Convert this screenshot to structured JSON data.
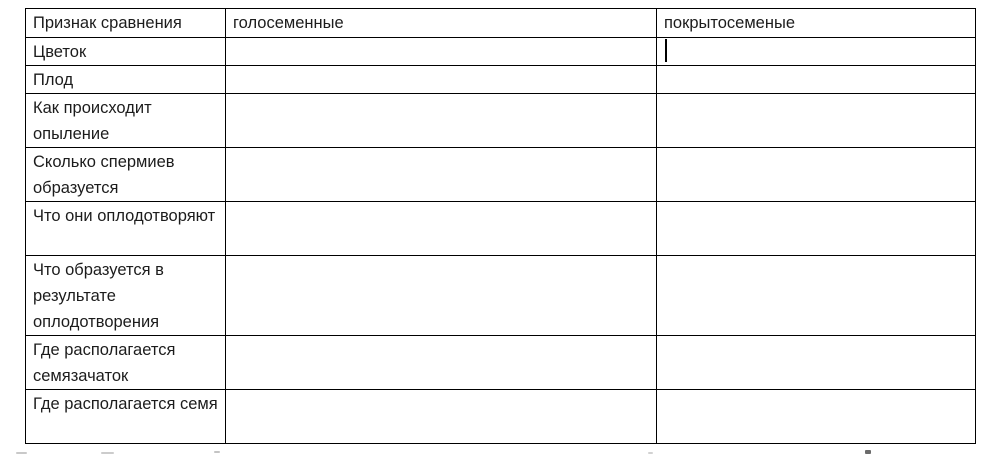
{
  "table": {
    "columns": [
      {
        "header": "Признак сравнения"
      },
      {
        "header": "голосеменные"
      },
      {
        "header": "покрытосеменые"
      }
    ],
    "rows": [
      {
        "label": "Цветок",
        "gymnosperms": "",
        "angiosperms": ""
      },
      {
        "label": "Плод",
        "gymnosperms": "",
        "angiosperms": ""
      },
      {
        "label": "Как происходит опыление",
        "gymnosperms": "",
        "angiosperms": ""
      },
      {
        "label": "Сколько спермиев образуется",
        "gymnosperms": "",
        "angiosperms": ""
      },
      {
        "label": "Что они оплодотворяют",
        "gymnosperms": "",
        "angiosperms": ""
      },
      {
        "label": "Что образуется в результате оплодотворения",
        "gymnosperms": "",
        "angiosperms": ""
      },
      {
        "label": "Где располагается семязачаток",
        "gymnosperms": "",
        "angiosperms": ""
      },
      {
        "label": "Где располагается семя",
        "gymnosperms": "",
        "angiosperms": ""
      }
    ]
  },
  "cursor": {
    "row_index": 0,
    "column_index": 2
  },
  "colors": {
    "border": "#000000",
    "text": "#1c1c1c",
    "background": "#ffffff",
    "caret": "#000000"
  }
}
